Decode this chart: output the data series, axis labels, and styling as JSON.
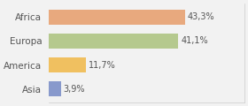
{
  "categories": [
    "Africa",
    "Europa",
    "America",
    "Asia"
  ],
  "values": [
    43.3,
    41.1,
    11.7,
    3.9
  ],
  "labels": [
    "43,3%",
    "41,1%",
    "11,7%",
    "3,9%"
  ],
  "bar_colors": [
    "#e8a97e",
    "#b5c98e",
    "#f0c060",
    "#8899cc"
  ],
  "background_color": "#f2f2f2",
  "xlim": [
    0,
    62
  ],
  "bar_height": 0.62,
  "figsize": [
    2.8,
    1.2
  ],
  "dpi": 100
}
